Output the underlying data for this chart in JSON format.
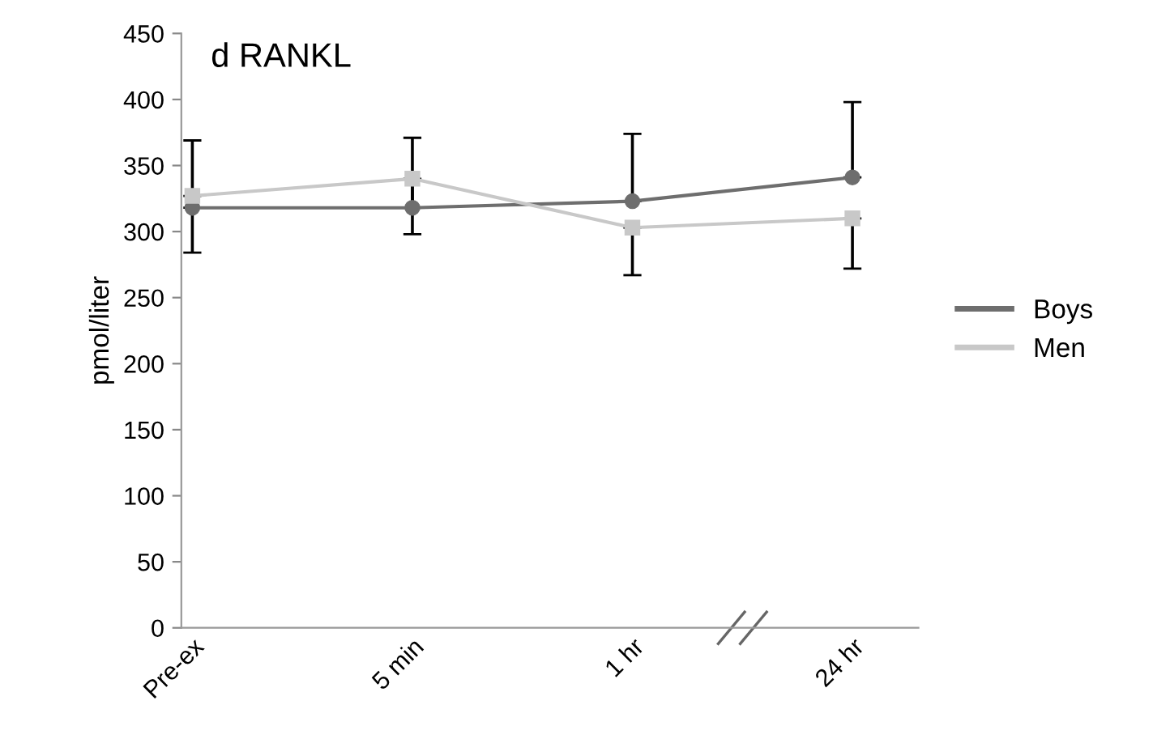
{
  "chart_data": {
    "type": "line",
    "title": "d RANKL",
    "ylabel": "pmol/liter",
    "categories": [
      "Pre-ex",
      "5 min",
      "1 hr",
      "24 hr"
    ],
    "series": [
      {
        "name": "Boys",
        "color": "#6e6e6e",
        "marker": "circle",
        "values": [
          318,
          318,
          323,
          341
        ],
        "errors": [
          [
            318,
            369
          ],
          [
            318,
            371
          ],
          [
            323,
            374
          ],
          [
            341,
            398
          ]
        ]
      },
      {
        "name": "Men",
        "color": "#c8c8c8",
        "marker": "square",
        "values": [
          327,
          340,
          303,
          310
        ],
        "errors": [
          [
            284,
            327
          ],
          [
            298,
            340
          ],
          [
            267,
            303
          ],
          [
            272,
            310
          ]
        ]
      }
    ],
    "ylim": [
      0,
      450
    ],
    "yticks": [
      0,
      50,
      100,
      150,
      200,
      250,
      300,
      350,
      400,
      450
    ],
    "grid": false,
    "legend": "right"
  }
}
